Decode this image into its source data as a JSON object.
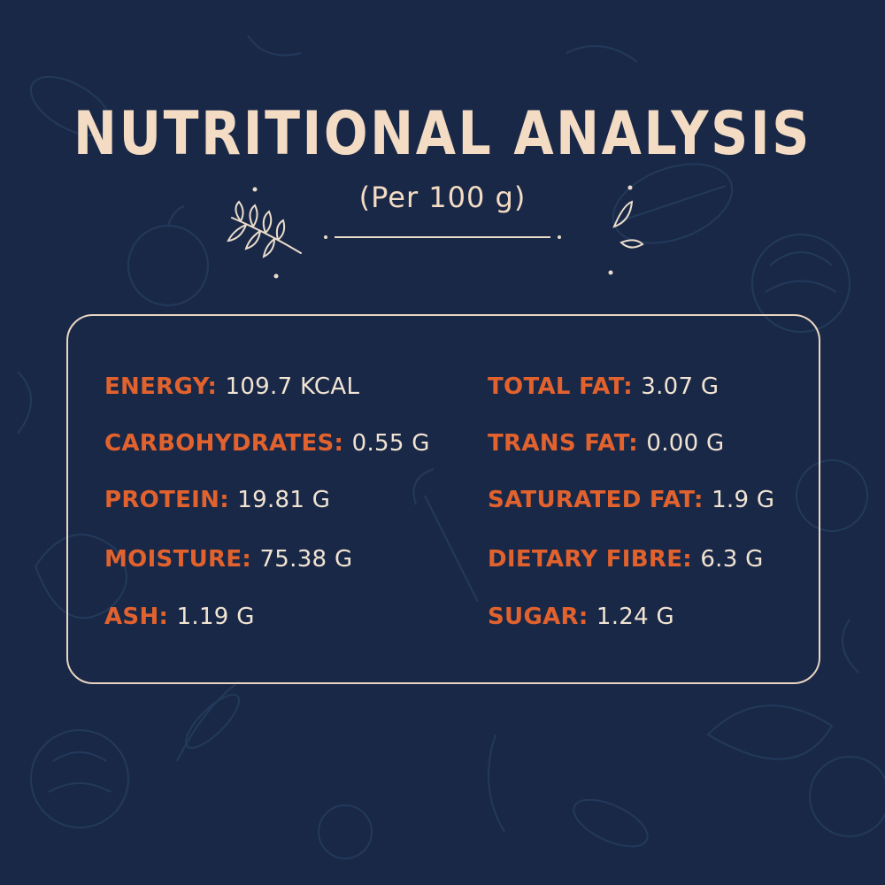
{
  "title": "NUTRITIONAL ANALYSIS",
  "subtitle": "(Per 100 g)",
  "nutrients": {
    "left": [
      {
        "label": "ENERGY:",
        "value": "109.7 KCAL"
      },
      {
        "label": "CARBOHYDRATES:",
        "value": "0.55 G"
      },
      {
        "label": "PROTEIN:",
        "value": "19.81 G"
      },
      {
        "label": "MOISTURE:",
        "value": "75.38 G"
      },
      {
        "label": "ASH:",
        "value": "1.19 G"
      }
    ],
    "right": [
      {
        "label": "TOTAL FAT:",
        "value": "3.07 G"
      },
      {
        "label": "TRANS FAT:",
        "value": "0.00 G"
      },
      {
        "label": "SATURATED FAT:",
        "value": "1.9 G"
      },
      {
        "label": "DIETARY FIBRE:",
        "value": "6.3 G"
      },
      {
        "label": "SUGAR:",
        "value": "1.24 G"
      }
    ]
  },
  "colors": {
    "background": "#1a2848",
    "title": "#f3dcc3",
    "label": "#e2622d",
    "value": "#f1e4d2",
    "panel_border": "#e9d5c1"
  }
}
